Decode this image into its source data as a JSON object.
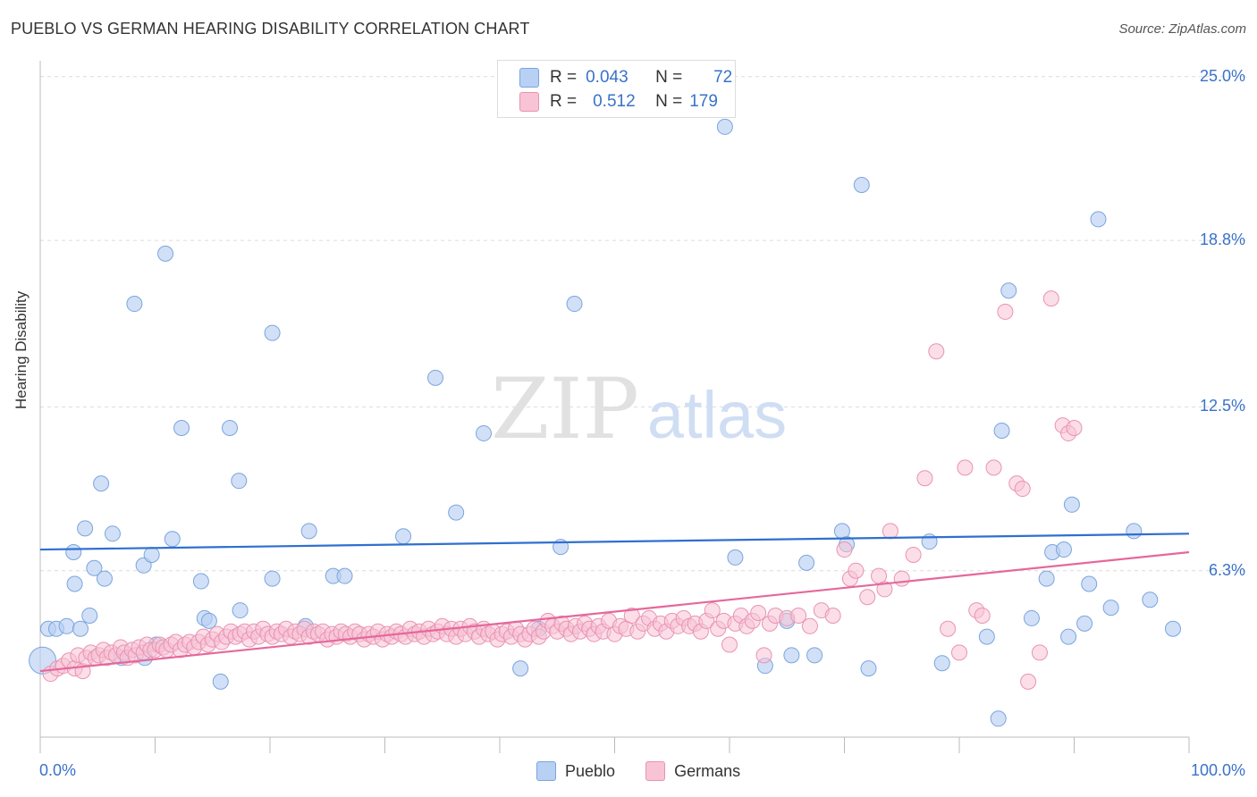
{
  "header": {
    "title": "PUEBLO VS GERMAN HEARING DISABILITY CORRELATION CHART",
    "source": "Source: ZipAtlas.com"
  },
  "watermark": {
    "zip": "ZIP",
    "atlas": "atlas"
  },
  "colors": {
    "pueblo_fill": "#b8d0f3",
    "pueblo_stroke": "#7aa5de",
    "pueblo_line": "#2f6fd0",
    "germans_fill": "#f8c3d5",
    "germans_stroke": "#e993b2",
    "germans_line": "#e5689a",
    "tick_text": "#3a72c9"
  },
  "legend_top": {
    "rows": [
      {
        "r_label": "R =",
        "r_value": "0.043",
        "n_label": "N =",
        "n_value": "72"
      },
      {
        "r_label": "R =",
        "r_value": "0.512",
        "n_label": "N =",
        "n_value": "179"
      }
    ]
  },
  "bottom_legend": [
    "Pueblo",
    "Germans"
  ],
  "chart_data": {
    "type": "scatter",
    "ylabel": "Hearing Disability",
    "xlabel": "",
    "x_tick_labels": [
      "0.0%",
      "100.0%"
    ],
    "y_tick_labels": [
      "6.3%",
      "12.5%",
      "18.8%",
      "25.0%"
    ],
    "y_ticks": [
      6.3,
      12.5,
      18.8,
      25.0
    ],
    "xlim": [
      0,
      100
    ],
    "ylim": [
      0,
      25.6
    ],
    "grid": "horizontal dashed",
    "series": [
      {
        "name": "Pueblo",
        "r": 0.043,
        "n": 72,
        "trend": [
          [
            0,
            7.1
          ],
          [
            100,
            7.7
          ]
        ],
        "points": [
          [
            0.2,
            2.9
          ],
          [
            0.7,
            4.1
          ],
          [
            1.4,
            4.1
          ],
          [
            2.3,
            4.2
          ],
          [
            2.9,
            7.0
          ],
          [
            3.0,
            5.8
          ],
          [
            3.5,
            4.1
          ],
          [
            3.9,
            7.9
          ],
          [
            4.3,
            4.6
          ],
          [
            4.7,
            6.4
          ],
          [
            5.3,
            9.6
          ],
          [
            5.6,
            6.0
          ],
          [
            6.3,
            7.7
          ],
          [
            7.1,
            3.0
          ],
          [
            8.2,
            16.4
          ],
          [
            9.0,
            6.5
          ],
          [
            9.1,
            3.0
          ],
          [
            9.7,
            6.9
          ],
          [
            10.1,
            3.5
          ],
          [
            10.9,
            18.3
          ],
          [
            11.5,
            7.5
          ],
          [
            12.3,
            11.7
          ],
          [
            14.0,
            5.9
          ],
          [
            14.3,
            4.5
          ],
          [
            14.7,
            4.4
          ],
          [
            15.7,
            2.1
          ],
          [
            16.5,
            11.7
          ],
          [
            17.3,
            9.7
          ],
          [
            17.4,
            4.8
          ],
          [
            20.2,
            6.0
          ],
          [
            20.2,
            15.3
          ],
          [
            23.1,
            4.2
          ],
          [
            23.4,
            7.8
          ],
          [
            25.5,
            6.1
          ],
          [
            26.5,
            6.1
          ],
          [
            31.6,
            7.6
          ],
          [
            34.4,
            13.6
          ],
          [
            36.2,
            8.5
          ],
          [
            38.6,
            11.5
          ],
          [
            41.8,
            2.6
          ],
          [
            43.4,
            4.1
          ],
          [
            45.3,
            7.2
          ],
          [
            46.5,
            16.4
          ],
          [
            59.6,
            23.1
          ],
          [
            60.5,
            6.8
          ],
          [
            63.1,
            2.7
          ],
          [
            65.0,
            4.4
          ],
          [
            65.4,
            3.1
          ],
          [
            66.7,
            6.6
          ],
          [
            67.4,
            3.1
          ],
          [
            69.8,
            7.8
          ],
          [
            70.2,
            7.3
          ],
          [
            71.5,
            20.9
          ],
          [
            72.1,
            2.6
          ],
          [
            77.4,
            7.4
          ],
          [
            78.5,
            2.8
          ],
          [
            82.4,
            3.8
          ],
          [
            83.4,
            0.7
          ],
          [
            83.7,
            11.6
          ],
          [
            84.3,
            16.9
          ],
          [
            86.3,
            4.5
          ],
          [
            87.6,
            6.0
          ],
          [
            88.1,
            7.0
          ],
          [
            89.1,
            7.1
          ],
          [
            89.5,
            3.8
          ],
          [
            89.8,
            8.8
          ],
          [
            90.9,
            4.3
          ],
          [
            91.3,
            5.8
          ],
          [
            92.1,
            19.6
          ],
          [
            93.2,
            4.9
          ],
          [
            95.2,
            7.8
          ],
          [
            96.6,
            5.2
          ],
          [
            98.6,
            4.1
          ]
        ]
      },
      {
        "name": "Germans",
        "r": 0.512,
        "n": 179,
        "trend": [
          [
            0,
            2.5
          ],
          [
            100,
            7.0
          ]
        ],
        "points": [
          [
            0.9,
            2.4
          ],
          [
            1.5,
            2.6
          ],
          [
            2.0,
            2.7
          ],
          [
            2.5,
            2.9
          ],
          [
            3.0,
            2.6
          ],
          [
            3.3,
            3.1
          ],
          [
            3.7,
            2.5
          ],
          [
            4.0,
            3.0
          ],
          [
            4.4,
            3.2
          ],
          [
            4.8,
            3.0
          ],
          [
            5.1,
            3.1
          ],
          [
            5.5,
            3.3
          ],
          [
            5.8,
            3.0
          ],
          [
            6.2,
            3.2
          ],
          [
            6.6,
            3.1
          ],
          [
            7.0,
            3.4
          ],
          [
            7.3,
            3.2
          ],
          [
            7.6,
            3.0
          ],
          [
            8.0,
            3.3
          ],
          [
            8.3,
            3.1
          ],
          [
            8.6,
            3.4
          ],
          [
            9.0,
            3.2
          ],
          [
            9.3,
            3.5
          ],
          [
            9.6,
            3.3
          ],
          [
            10.0,
            3.3
          ],
          [
            10.4,
            3.5
          ],
          [
            10.7,
            3.4
          ],
          [
            11.0,
            3.3
          ],
          [
            11.4,
            3.5
          ],
          [
            11.8,
            3.6
          ],
          [
            12.2,
            3.3
          ],
          [
            12.6,
            3.5
          ],
          [
            13.0,
            3.6
          ],
          [
            13.4,
            3.4
          ],
          [
            13.8,
            3.6
          ],
          [
            14.2,
            3.8
          ],
          [
            14.6,
            3.5
          ],
          [
            15.0,
            3.7
          ],
          [
            15.4,
            3.9
          ],
          [
            15.8,
            3.6
          ],
          [
            16.2,
            3.8
          ],
          [
            16.6,
            4.0
          ],
          [
            17.0,
            3.8
          ],
          [
            17.4,
            3.9
          ],
          [
            17.8,
            4.0
          ],
          [
            18.2,
            3.7
          ],
          [
            18.6,
            4.0
          ],
          [
            19.0,
            3.8
          ],
          [
            19.4,
            4.1
          ],
          [
            19.8,
            3.9
          ],
          [
            20.2,
            3.8
          ],
          [
            20.6,
            4.0
          ],
          [
            21.0,
            3.9
          ],
          [
            21.4,
            4.1
          ],
          [
            21.8,
            3.8
          ],
          [
            22.2,
            4.0
          ],
          [
            22.6,
            3.9
          ],
          [
            23.0,
            4.1
          ],
          [
            23.4,
            3.8
          ],
          [
            23.8,
            4.0
          ],
          [
            24.2,
            3.9
          ],
          [
            24.6,
            4.0
          ],
          [
            25.0,
            3.7
          ],
          [
            25.4,
            3.9
          ],
          [
            25.8,
            3.8
          ],
          [
            26.2,
            4.0
          ],
          [
            26.6,
            3.9
          ],
          [
            27.0,
            3.8
          ],
          [
            27.4,
            4.0
          ],
          [
            27.8,
            3.9
          ],
          [
            28.2,
            3.7
          ],
          [
            28.6,
            3.9
          ],
          [
            29.0,
            3.8
          ],
          [
            29.4,
            4.0
          ],
          [
            29.8,
            3.7
          ],
          [
            30.2,
            3.9
          ],
          [
            30.6,
            3.8
          ],
          [
            31.0,
            4.0
          ],
          [
            31.4,
            3.9
          ],
          [
            31.8,
            3.8
          ],
          [
            32.2,
            4.1
          ],
          [
            32.6,
            3.9
          ],
          [
            33.0,
            4.0
          ],
          [
            33.4,
            3.8
          ],
          [
            33.8,
            4.1
          ],
          [
            34.2,
            3.9
          ],
          [
            34.6,
            4.0
          ],
          [
            35.0,
            4.2
          ],
          [
            35.4,
            3.9
          ],
          [
            35.8,
            4.1
          ],
          [
            36.2,
            3.8
          ],
          [
            36.6,
            4.1
          ],
          [
            37.0,
            3.9
          ],
          [
            37.4,
            4.2
          ],
          [
            37.8,
            4.0
          ],
          [
            38.2,
            3.8
          ],
          [
            38.6,
            4.1
          ],
          [
            39.0,
            3.9
          ],
          [
            39.4,
            4.0
          ],
          [
            39.8,
            3.7
          ],
          [
            40.2,
            3.9
          ],
          [
            40.6,
            4.0
          ],
          [
            41.0,
            3.8
          ],
          [
            41.4,
            4.1
          ],
          [
            41.8,
            3.9
          ],
          [
            42.2,
            3.7
          ],
          [
            42.6,
            3.9
          ],
          [
            43.0,
            4.1
          ],
          [
            43.4,
            3.8
          ],
          [
            43.8,
            4.0
          ],
          [
            44.2,
            4.4
          ],
          [
            44.6,
            4.2
          ],
          [
            45.0,
            4.0
          ],
          [
            45.4,
            4.3
          ],
          [
            45.8,
            4.1
          ],
          [
            46.2,
            3.9
          ],
          [
            46.6,
            4.2
          ],
          [
            47.0,
            4.0
          ],
          [
            47.4,
            4.3
          ],
          [
            47.8,
            4.1
          ],
          [
            48.2,
            3.9
          ],
          [
            48.6,
            4.2
          ],
          [
            49.0,
            4.0
          ],
          [
            49.5,
            4.4
          ],
          [
            50.0,
            3.9
          ],
          [
            50.5,
            4.2
          ],
          [
            51.0,
            4.1
          ],
          [
            51.5,
            4.6
          ],
          [
            52.0,
            4.0
          ],
          [
            52.5,
            4.3
          ],
          [
            53.0,
            4.5
          ],
          [
            53.5,
            4.1
          ],
          [
            54.0,
            4.3
          ],
          [
            54.5,
            4.0
          ],
          [
            55.0,
            4.4
          ],
          [
            55.5,
            4.2
          ],
          [
            56.0,
            4.5
          ],
          [
            56.5,
            4.2
          ],
          [
            57.0,
            4.3
          ],
          [
            57.5,
            4.0
          ],
          [
            58.0,
            4.4
          ],
          [
            58.5,
            4.8
          ],
          [
            59.0,
            4.1
          ],
          [
            59.5,
            4.4
          ],
          [
            60.0,
            3.5
          ],
          [
            60.5,
            4.3
          ],
          [
            61.0,
            4.6
          ],
          [
            61.5,
            4.2
          ],
          [
            62.0,
            4.4
          ],
          [
            62.5,
            4.7
          ],
          [
            63.0,
            3.1
          ],
          [
            63.5,
            4.3
          ],
          [
            64.0,
            4.6
          ],
          [
            65.0,
            4.5
          ],
          [
            66.0,
            4.6
          ],
          [
            67.0,
            4.2
          ],
          [
            68.0,
            4.8
          ],
          [
            69.0,
            4.6
          ],
          [
            70.0,
            7.1
          ],
          [
            70.5,
            6.0
          ],
          [
            71.0,
            6.3
          ],
          [
            72.0,
            5.3
          ],
          [
            73.0,
            6.1
          ],
          [
            73.5,
            5.6
          ],
          [
            74.0,
            7.8
          ],
          [
            75.0,
            6.0
          ],
          [
            76.0,
            6.9
          ],
          [
            77.0,
            9.8
          ],
          [
            78.0,
            14.6
          ],
          [
            79.0,
            4.1
          ],
          [
            80.0,
            3.2
          ],
          [
            80.5,
            10.2
          ],
          [
            81.5,
            4.8
          ],
          [
            82.0,
            4.6
          ],
          [
            83.0,
            10.2
          ],
          [
            84.0,
            16.1
          ],
          [
            85.0,
            9.6
          ],
          [
            85.5,
            9.4
          ],
          [
            86.0,
            2.1
          ],
          [
            87.0,
            3.2
          ],
          [
            88.0,
            16.6
          ],
          [
            89.0,
            11.8
          ],
          [
            89.5,
            11.5
          ],
          [
            90.0,
            11.7
          ]
        ]
      }
    ]
  }
}
